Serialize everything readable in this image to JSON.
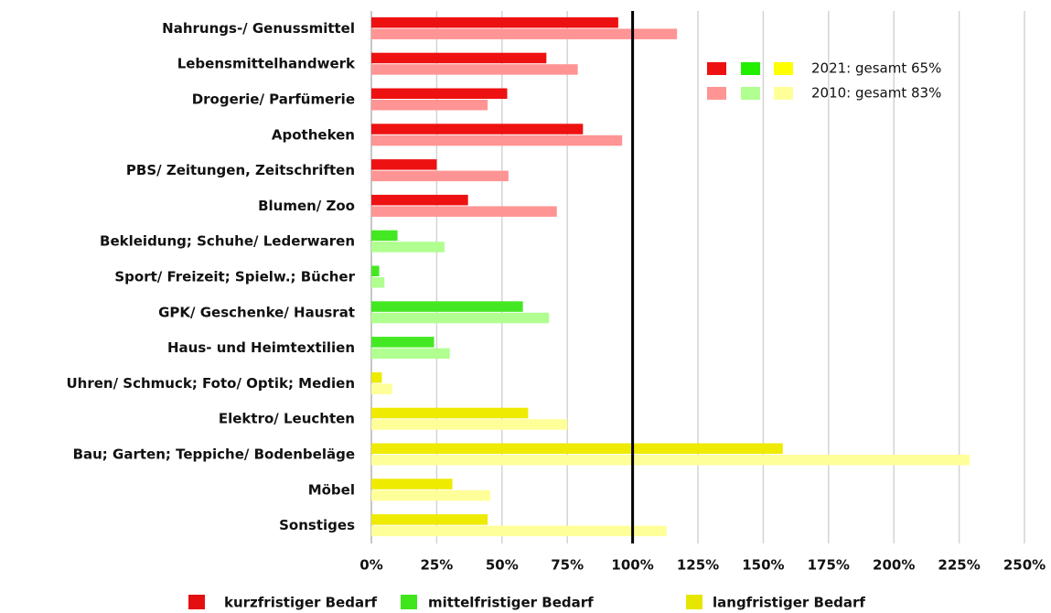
{
  "chart_data": {
    "type": "bar",
    "orientation": "horizontal",
    "categories": [
      "Nahrungs-/ Genussmittel",
      "Lebensmittelhandwerk",
      "Drogerie/ Parfümerie",
      "Apotheken",
      "PBS/ Zeitungen, Zeitschriften",
      "Blumen/ Zoo",
      "Bekleidung; Schuhe/ Lederwaren",
      "Sport/ Freizeit; Spielw.; Bücher",
      "GPK/ Geschenke/ Hausrat",
      "Haus- und Heimtextilien",
      "Uhren/ Schmuck; Foto/ Optik; Medien",
      "Elektro/ Leuchten",
      "Bau; Garten; Teppiche/ Bodenbeläge",
      "Möbel",
      "Sonstiges"
    ],
    "category_groups": [
      "kurzfristiger Bedarf",
      "kurzfristiger Bedarf",
      "kurzfristiger Bedarf",
      "kurzfristiger Bedarf",
      "kurzfristiger Bedarf",
      "kurzfristiger Bedarf",
      "mittelfristiger Bedarf",
      "mittelfristiger Bedarf",
      "mittelfristiger Bedarf",
      "mittelfristiger Bedarf",
      "langfristiger Bedarf",
      "langfristiger Bedarf",
      "langfristiger Bedarf",
      "langfristiger Bedarf",
      "langfristiger Bedarf"
    ],
    "groups": [
      {
        "name": "kurzfristiger Bedarf",
        "color": "#e41010"
      },
      {
        "name": "mittelfristiger Bedarf",
        "color": "#3ee61a"
      },
      {
        "name": "langfristiger Bedarf",
        "color": "#e6e600"
      }
    ],
    "series": [
      {
        "name": "2021: gesamt 65%",
        "colors": [
          "#ee1111",
          "#22ee00",
          "#ffff00"
        ],
        "bar_colors": [
          "#ee1111",
          "#44e822",
          "#eeea00"
        ],
        "values": [
          94.5,
          67,
          52,
          81,
          25,
          37,
          10,
          3,
          58,
          24,
          4,
          60,
          157.5,
          31,
          44.5
        ]
      },
      {
        "name": "2010: gesamt 83%",
        "colors": [
          "#ff9494",
          "#b0ff90",
          "#ffff9a"
        ],
        "bar_colors": [
          "#ff9494",
          "#b0ff90",
          "#ffff9a"
        ],
        "values": [
          117,
          79,
          44.5,
          96,
          52.5,
          71,
          28,
          5,
          68,
          30,
          8,
          75,
          229,
          45.5,
          113
        ]
      }
    ],
    "reference_line": 100,
    "xlim": [
      0,
      250
    ],
    "xticks": [
      {
        "value": 0,
        "label": "0%"
      },
      {
        "value": 25,
        "label": "25%"
      },
      {
        "value": 50,
        "label": "50%"
      },
      {
        "value": 75,
        "label": "75%"
      },
      {
        "value": 100,
        "label": "100%"
      },
      {
        "value": 125,
        "label": "125%"
      },
      {
        "value": 150,
        "label": "150%"
      },
      {
        "value": 175,
        "label": "175%"
      },
      {
        "value": 200,
        "label": "200%"
      },
      {
        "value": 225,
        "label": "225%"
      },
      {
        "value": 250,
        "label": "250%"
      }
    ],
    "grid": true
  }
}
